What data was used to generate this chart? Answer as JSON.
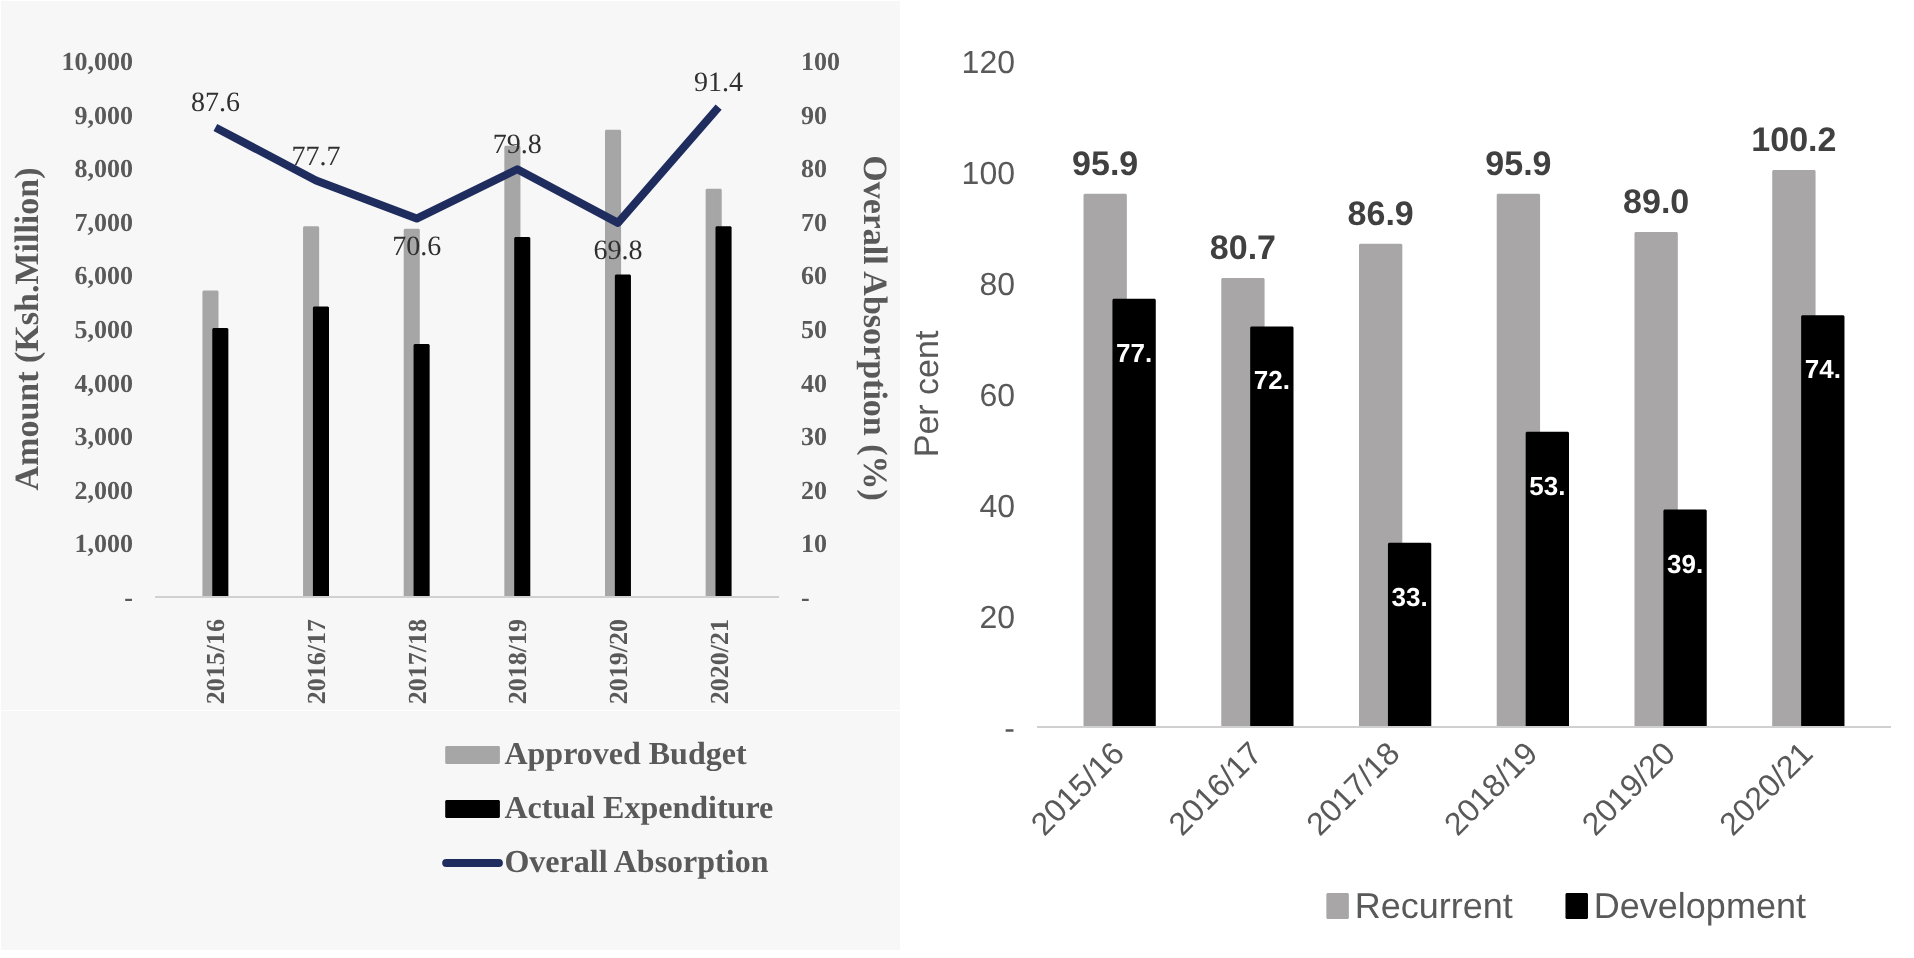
{
  "chart_data": [
    {
      "type": "bar",
      "categories": [
        "2015/16",
        "2016/17",
        "2017/18",
        "2018/19",
        "2019/20",
        "2020/21"
      ],
      "ylabel": "Amount (Ksh.Million)",
      "y2label": "Overall Absorption (%)",
      "ylim": [
        0,
        10000
      ],
      "yticks": [
        {
          "value": 0,
          "label": "-"
        },
        {
          "value": 1000,
          "label": "1,000"
        },
        {
          "value": 2000,
          "label": "2,000"
        },
        {
          "value": 3000,
          "label": "3,000"
        },
        {
          "value": 4000,
          "label": "4,000"
        },
        {
          "value": 5000,
          "label": "5,000"
        },
        {
          "value": 6000,
          "label": "6,000"
        },
        {
          "value": 7000,
          "label": "7,000"
        },
        {
          "value": 8000,
          "label": "8,000"
        },
        {
          "value": 9000,
          "label": "9,000"
        },
        {
          "value": 10000,
          "label": "10,000"
        }
      ],
      "y2lim": [
        0,
        100
      ],
      "y2ticks": [
        {
          "value": 0,
          "label": "-"
        },
        10,
        20,
        30,
        40,
        50,
        60,
        70,
        80,
        90,
        100
      ],
      "series": [
        {
          "name": "Approved Budget",
          "color": "#a6a6a6",
          "values": [
            5700,
            6900,
            6850,
            8400,
            8700,
            7600
          ]
        },
        {
          "name": "Actual Expenditure",
          "color": "#000000",
          "values": [
            5000,
            5400,
            4700,
            6700,
            6000,
            6900
          ]
        },
        {
          "name": "Overall Absorption",
          "type": "line",
          "axis": "y2",
          "color": "#1f2d5e",
          "values": [
            87.6,
            77.7,
            70.6,
            79.8,
            69.8,
            91.4
          ],
          "value_labels": [
            "87.6",
            "77.7",
            "70.6",
            "79.8",
            "69.8",
            "91.4"
          ]
        }
      ],
      "grid": false,
      "legend": "bottom"
    },
    {
      "type": "bar",
      "categories": [
        "2015/16",
        "2016/17",
        "2017/18",
        "2018/19",
        "2019/20",
        "2020/21"
      ],
      "ylabel": "Per cent",
      "ylim": [
        0,
        120
      ],
      "yticks": [
        {
          "value": 0,
          "label": "-"
        },
        20,
        40,
        60,
        80,
        100,
        120
      ],
      "series": [
        {
          "name": "Recurrent",
          "color": "#a8a6a6",
          "values": [
            95.9,
            80.7,
            86.9,
            95.9,
            89.0,
            100.2
          ],
          "value_labels": [
            "95.9",
            "80.7",
            "86.9",
            "95.9",
            "89.0",
            "100.2"
          ]
        },
        {
          "name": "Development",
          "color": "#000000",
          "values": [
            77,
            72,
            33,
            53,
            39,
            74
          ],
          "value_labels": [
            "77.",
            "72.",
            "33.",
            "53.",
            "39.",
            "74."
          ]
        }
      ],
      "grid": false,
      "legend": "bottom"
    }
  ]
}
